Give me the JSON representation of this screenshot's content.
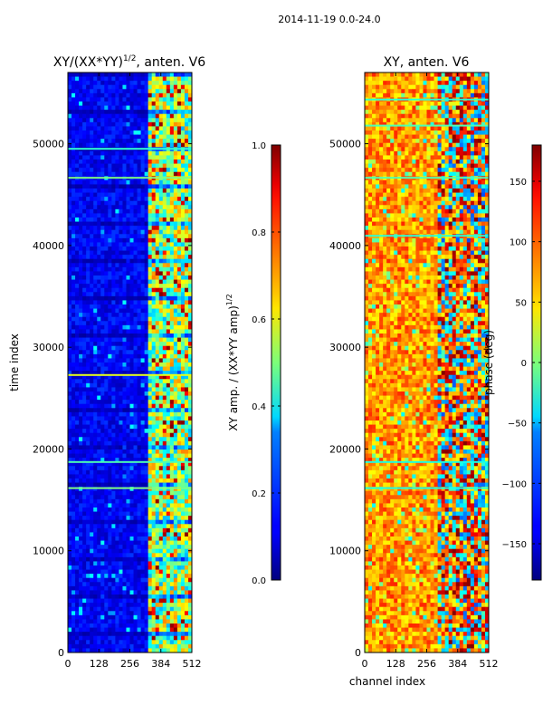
{
  "figure_title": "2014-11-19 0.0-24.0",
  "chart_data": [
    {
      "type": "heatmap",
      "title": "XY/(XX*YY)^1/2, anten. V6",
      "title_main": "XY/(XX*YY)",
      "title_sup": "1/2",
      "title_suffix": ", anten. V6",
      "xlabel": "",
      "ylabel": "time index",
      "xlim": [
        0,
        512
      ],
      "ylim": [
        0,
        57000
      ],
      "xticks": [
        0,
        128,
        256,
        384,
        512
      ],
      "yticks": [
        0,
        10000,
        20000,
        30000,
        40000,
        50000
      ],
      "colormap": "jet",
      "colorbar": {
        "label": "XY amp. / (XX*YY amp)^1/2",
        "label_main": "XY amp. / (XX*YY amp)",
        "label_sup": "1/2",
        "range": [
          0.0,
          1.0
        ],
        "ticks": [
          0.0,
          0.2,
          0.4,
          0.6,
          0.8,
          1.0
        ],
        "tick_labels": [
          "0.0",
          "0.2",
          "0.4",
          "0.6",
          "0.8",
          "1.0"
        ]
      }
    },
    {
      "type": "heatmap",
      "title": "XY, anten. V6",
      "xlabel": "channel index",
      "ylabel": "",
      "xlim": [
        0,
        512
      ],
      "ylim": [
        0,
        57000
      ],
      "xticks": [
        0,
        128,
        256,
        384,
        512
      ],
      "yticks": [
        0,
        10000,
        20000,
        30000,
        40000,
        50000
      ],
      "colormap": "jet",
      "colorbar": {
        "label": "phase (deg)",
        "range": [
          -180,
          180
        ],
        "ticks": [
          -150,
          -100,
          -50,
          0,
          50,
          100,
          150
        ],
        "tick_labels": [
          "−150",
          "−100",
          "−50",
          "0",
          "50",
          "100",
          "150"
        ]
      }
    }
  ]
}
